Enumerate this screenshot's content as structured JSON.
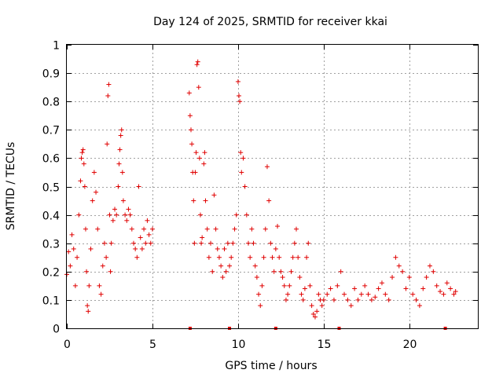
{
  "chart_data": {
    "type": "scatter",
    "title": "Day 124 of 2025, SRMTID for receiver kkai",
    "xlabel": "GPS time / hours",
    "ylabel": "SRMTID / TECUs",
    "xlim": [
      0,
      24
    ],
    "ylim": [
      0,
      1
    ],
    "xticks": [
      0,
      5,
      10,
      15,
      20
    ],
    "xtick_labels": [
      "0",
      "5",
      "10",
      "15",
      "20"
    ],
    "yticks": [
      0,
      0.1,
      0.2,
      0.3,
      0.4,
      0.5,
      0.6,
      0.7,
      0.8,
      0.9,
      1
    ],
    "ytick_labels": [
      "0",
      "0.1",
      "0.2",
      "0.3",
      "0.4",
      "0.5",
      "0.6",
      "0.7",
      "0.8",
      "0.9",
      "1"
    ],
    "grid": true,
    "marker": "plus",
    "color": "#e00000",
    "series": [
      {
        "name": "SRMTID",
        "points": [
          [
            0.0,
            0.19
          ],
          [
            0.1,
            0.27
          ],
          [
            0.2,
            0.22
          ],
          [
            0.3,
            0.33
          ],
          [
            0.4,
            0.28
          ],
          [
            0.5,
            0.15
          ],
          [
            0.6,
            0.25
          ],
          [
            0.7,
            0.4
          ],
          [
            0.8,
            0.52
          ],
          [
            0.85,
            0.6
          ],
          [
            0.9,
            0.62
          ],
          [
            0.95,
            0.63
          ],
          [
            1.0,
            0.58
          ],
          [
            1.05,
            0.5
          ],
          [
            1.1,
            0.35
          ],
          [
            1.15,
            0.2
          ],
          [
            1.2,
            0.08
          ],
          [
            1.25,
            0.06
          ],
          [
            1.3,
            0.15
          ],
          [
            1.4,
            0.28
          ],
          [
            1.5,
            0.45
          ],
          [
            1.6,
            0.55
          ],
          [
            1.7,
            0.48
          ],
          [
            1.8,
            0.35
          ],
          [
            1.9,
            0.15
          ],
          [
            2.0,
            0.12
          ],
          [
            2.1,
            0.22
          ],
          [
            2.2,
            0.3
          ],
          [
            2.3,
            0.25
          ],
          [
            2.35,
            0.65
          ],
          [
            2.4,
            0.82
          ],
          [
            2.45,
            0.86
          ],
          [
            2.5,
            0.4
          ],
          [
            2.55,
            0.2
          ],
          [
            2.6,
            0.3
          ],
          [
            2.7,
            0.38
          ],
          [
            2.8,
            0.42
          ],
          [
            2.9,
            0.4
          ],
          [
            3.0,
            0.5
          ],
          [
            3.05,
            0.58
          ],
          [
            3.1,
            0.63
          ],
          [
            3.15,
            0.68
          ],
          [
            3.2,
            0.7
          ],
          [
            3.25,
            0.55
          ],
          [
            3.3,
            0.45
          ],
          [
            3.4,
            0.4
          ],
          [
            3.5,
            0.38
          ],
          [
            3.6,
            0.42
          ],
          [
            3.7,
            0.4
          ],
          [
            3.8,
            0.35
          ],
          [
            3.9,
            0.3
          ],
          [
            4.0,
            0.28
          ],
          [
            4.1,
            0.25
          ],
          [
            4.2,
            0.5
          ],
          [
            4.3,
            0.32
          ],
          [
            4.4,
            0.28
          ],
          [
            4.5,
            0.35
          ],
          [
            4.6,
            0.3
          ],
          [
            4.7,
            0.38
          ],
          [
            4.8,
            0.33
          ],
          [
            4.9,
            0.3
          ],
          [
            5.0,
            0.35
          ],
          [
            7.15,
            0.83
          ],
          [
            7.2,
            0.75
          ],
          [
            7.25,
            0.7
          ],
          [
            7.3,
            0.65
          ],
          [
            7.35,
            0.55
          ],
          [
            7.4,
            0.45
          ],
          [
            7.45,
            0.3
          ],
          [
            7.5,
            0.55
          ],
          [
            7.55,
            0.62
          ],
          [
            7.6,
            0.93
          ],
          [
            7.65,
            0.94
          ],
          [
            7.7,
            0.85
          ],
          [
            7.75,
            0.6
          ],
          [
            7.8,
            0.4
          ],
          [
            7.85,
            0.3
          ],
          [
            7.9,
            0.32
          ],
          [
            8.0,
            0.58
          ],
          [
            8.05,
            0.62
          ],
          [
            8.1,
            0.45
          ],
          [
            8.2,
            0.35
          ],
          [
            8.3,
            0.25
          ],
          [
            8.4,
            0.3
          ],
          [
            8.5,
            0.2
          ],
          [
            8.6,
            0.47
          ],
          [
            8.7,
            0.35
          ],
          [
            8.8,
            0.28
          ],
          [
            8.9,
            0.25
          ],
          [
            9.0,
            0.22
          ],
          [
            9.1,
            0.18
          ],
          [
            9.2,
            0.28
          ],
          [
            9.3,
            0.2
          ],
          [
            9.4,
            0.3
          ],
          [
            9.5,
            0.22
          ],
          [
            9.6,
            0.25
          ],
          [
            9.7,
            0.3
          ],
          [
            9.8,
            0.35
          ],
          [
            9.9,
            0.4
          ],
          [
            10.0,
            0.87
          ],
          [
            10.05,
            0.82
          ],
          [
            10.1,
            0.8
          ],
          [
            10.15,
            0.62
          ],
          [
            10.2,
            0.55
          ],
          [
            10.3,
            0.6
          ],
          [
            10.4,
            0.5
          ],
          [
            10.5,
            0.4
          ],
          [
            10.6,
            0.3
          ],
          [
            10.7,
            0.25
          ],
          [
            10.8,
            0.35
          ],
          [
            10.9,
            0.3
          ],
          [
            11.0,
            0.22
          ],
          [
            11.1,
            0.18
          ],
          [
            11.2,
            0.12
          ],
          [
            11.3,
            0.08
          ],
          [
            11.4,
            0.15
          ],
          [
            11.5,
            0.25
          ],
          [
            11.6,
            0.35
          ],
          [
            11.7,
            0.57
          ],
          [
            11.8,
            0.45
          ],
          [
            11.9,
            0.3
          ],
          [
            12.0,
            0.25
          ],
          [
            12.1,
            0.2
          ],
          [
            12.2,
            0.28
          ],
          [
            12.3,
            0.36
          ],
          [
            12.4,
            0.25
          ],
          [
            12.5,
            0.2
          ],
          [
            12.6,
            0.18
          ],
          [
            12.7,
            0.15
          ],
          [
            12.8,
            0.1
          ],
          [
            12.9,
            0.12
          ],
          [
            13.0,
            0.15
          ],
          [
            13.1,
            0.2
          ],
          [
            13.2,
            0.25
          ],
          [
            13.3,
            0.3
          ],
          [
            13.4,
            0.35
          ],
          [
            13.5,
            0.25
          ],
          [
            13.6,
            0.18
          ],
          [
            13.7,
            0.12
          ],
          [
            13.8,
            0.1
          ],
          [
            13.9,
            0.14
          ],
          [
            14.0,
            0.25
          ],
          [
            14.1,
            0.3
          ],
          [
            14.2,
            0.15
          ],
          [
            14.3,
            0.08
          ],
          [
            14.4,
            0.05
          ],
          [
            14.5,
            0.04
          ],
          [
            14.6,
            0.06
          ],
          [
            14.7,
            0.12
          ],
          [
            14.8,
            0.1
          ],
          [
            14.9,
            0.08
          ],
          [
            15.0,
            0.1
          ],
          [
            15.2,
            0.12
          ],
          [
            15.4,
            0.14
          ],
          [
            15.6,
            0.1
          ],
          [
            15.8,
            0.15
          ],
          [
            16.0,
            0.2
          ],
          [
            16.2,
            0.12
          ],
          [
            16.4,
            0.1
          ],
          [
            16.6,
            0.08
          ],
          [
            16.8,
            0.14
          ],
          [
            17.0,
            0.1
          ],
          [
            17.2,
            0.12
          ],
          [
            17.4,
            0.15
          ],
          [
            17.6,
            0.12
          ],
          [
            17.8,
            0.1
          ],
          [
            18.0,
            0.11
          ],
          [
            18.2,
            0.14
          ],
          [
            18.4,
            0.16
          ],
          [
            18.6,
            0.12
          ],
          [
            18.8,
            0.1
          ],
          [
            19.0,
            0.18
          ],
          [
            19.2,
            0.25
          ],
          [
            19.4,
            0.22
          ],
          [
            19.6,
            0.2
          ],
          [
            19.8,
            0.14
          ],
          [
            20.0,
            0.18
          ],
          [
            20.2,
            0.12
          ],
          [
            20.4,
            0.1
          ],
          [
            20.6,
            0.08
          ],
          [
            20.8,
            0.14
          ],
          [
            21.0,
            0.18
          ],
          [
            21.2,
            0.22
          ],
          [
            21.4,
            0.2
          ],
          [
            21.6,
            0.15
          ],
          [
            21.8,
            0.13
          ],
          [
            22.0,
            0.12
          ],
          [
            22.2,
            0.16
          ],
          [
            22.4,
            0.14
          ],
          [
            22.6,
            0.12
          ],
          [
            22.7,
            0.13
          ]
        ]
      }
    ],
    "gap_markers_x": [
      7.2,
      9.5,
      12.2,
      15.9,
      22.1
    ]
  }
}
